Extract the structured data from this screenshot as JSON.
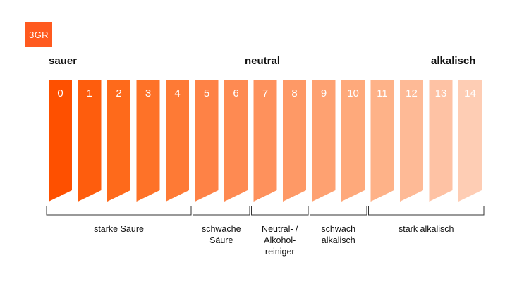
{
  "logo": {
    "text": "3GR"
  },
  "headings": {
    "left": "sauer",
    "center": "neutral",
    "right": "alkalisch"
  },
  "scale": {
    "values": [
      "0",
      "1",
      "2",
      "3",
      "4",
      "5",
      "6",
      "7",
      "8",
      "9",
      "10",
      "11",
      "12",
      "13",
      "14"
    ],
    "colors": [
      "#fe5000",
      "#fe5d0d",
      "#fe6a1b",
      "#fe7228",
      "#fe7a35",
      "#fe8246",
      "#fe8a52",
      "#fe915c",
      "#fe9966",
      "#fea171",
      "#fea97b",
      "#feb288",
      "#feba96",
      "#fec2a4",
      "#fecdb4"
    ]
  },
  "groups": [
    {
      "label": "starke Säure",
      "from": 0,
      "to": 4
    },
    {
      "label": "schwache\nSäure",
      "from": 5,
      "to": 6
    },
    {
      "label": "Neutral- /\nAlkohol-\nreiniger",
      "from": 7,
      "to": 8
    },
    {
      "label": "schwach\nalkalisch",
      "from": 9,
      "to": 10
    },
    {
      "label": "stark alkalisch",
      "from": 11,
      "to": 14
    }
  ]
}
